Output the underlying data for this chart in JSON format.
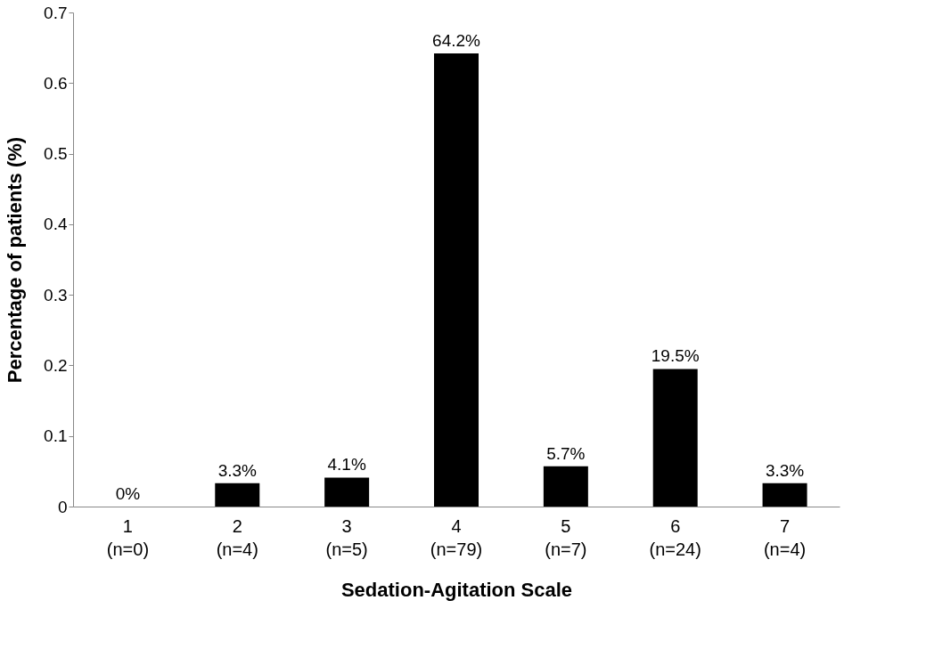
{
  "chart_data": {
    "type": "bar",
    "xlabel": "Sedation-Agitation Scale",
    "ylabel": "Percentage of patients (%)",
    "categories": [
      "1\n(n=0)",
      "2\n(n=4)",
      "3\n(n=5)",
      "4\n(n=79)",
      "5\n(n=7)",
      "6\n(n=24)",
      "7\n(n=4)"
    ],
    "values": [
      0,
      0.033,
      0.041,
      0.642,
      0.057,
      0.195,
      0.033
    ],
    "value_labels": [
      "0%",
      "3.3%",
      "4.1%",
      "64.2%",
      "5.7%",
      "19.5%",
      "3.3%"
    ],
    "color": "#000000",
    "ylim": [
      0,
      0.7
    ],
    "yticks": [
      0,
      0.1,
      0.2,
      0.3,
      0.4,
      0.5,
      0.6,
      0.7
    ],
    "grid": false
  }
}
